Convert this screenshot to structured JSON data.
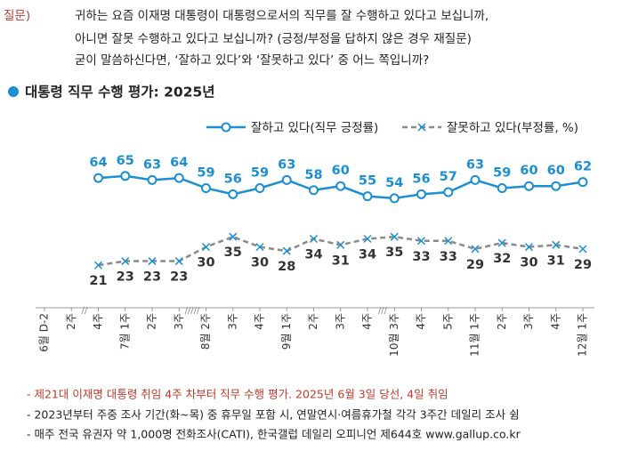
{
  "question": {
    "label": "질문)",
    "lines": [
      "귀하는 요즘 이재명 대통령이 대통령으로서의 직무를 잘 수행하고 있다고 보십니까,",
      "아니면 잘못 수행하고 있다고 보십니까? (긍정/부정을 답하지 않은 경우 재질문)",
      "굳이 말씀하신다면, ‘잘하고 있다’와 ‘잘못하고 있다’ 중 어느 쪽입니까?"
    ]
  },
  "footnotes": [
    "- 제21대 이재명 대통령 취임 4주 차부터 직무 수행 평가. 2025년 6월 3일 당선, 4일 취임",
    "- 2023년부터 주중 조사 기간(화~목) 중 휴무일 포함 시, 연말연시·여름휴가철 각각 3주간 데일리 조사 쉼",
    "- 매주 전국 유권자 약 1,000명 전화조사(CATI), 한국갤럽 데일리 오피니언 제644호 www.gallup.co.kr"
  ],
  "chart_data": {
    "type": "line",
    "title": "대통령 직무 수행 평가: 2025년",
    "categories": [
      "6월 D-2",
      "2주",
      "4주",
      "7월 1주",
      "2주",
      "3주",
      "8월 2주",
      "3주",
      "4주",
      "9월 1주",
      "2주",
      "3주",
      "4주",
      "10월 3주",
      "4주",
      "5주",
      "11월 1주",
      "2주",
      "3주",
      "4주",
      "12월 1주"
    ],
    "series": [
      {
        "name": "잘하고 있다(직무 긍정률)",
        "color": "#1b8fd2",
        "values": [
          null,
          null,
          64,
          65,
          63,
          64,
          59,
          56,
          59,
          63,
          58,
          60,
          55,
          54,
          56,
          57,
          63,
          59,
          60,
          60,
          62
        ]
      },
      {
        "name": "잘못하고 있다(부정률, %)",
        "color": "#8a8a8a",
        "values": [
          null,
          null,
          21,
          23,
          23,
          23,
          30,
          35,
          30,
          28,
          34,
          31,
          34,
          35,
          33,
          33,
          29,
          32,
          30,
          31,
          29
        ]
      }
    ]
  }
}
